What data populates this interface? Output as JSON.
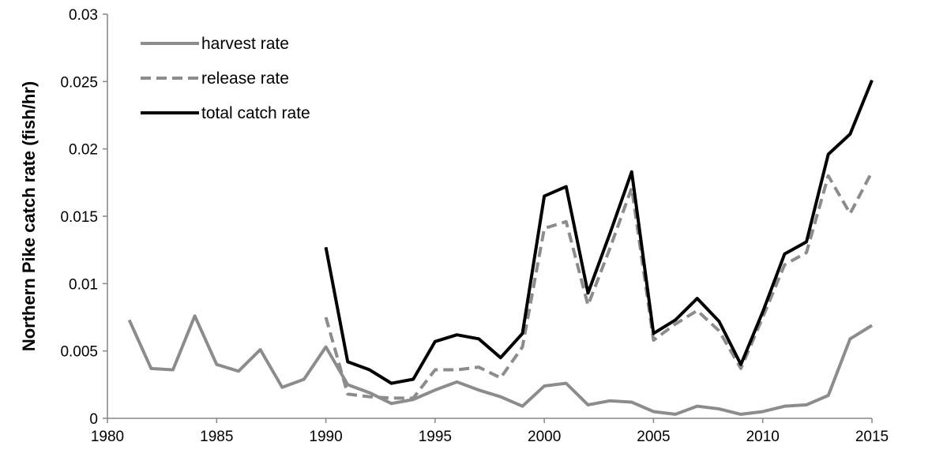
{
  "chart_data": {
    "type": "line",
    "ylabel": "Northern Pike catch rate (fish/hr)",
    "xlabel": "",
    "xlim": [
      1980,
      2015
    ],
    "ylim": [
      0,
      0.03
    ],
    "x_ticks": [
      1980,
      1985,
      1990,
      1995,
      2000,
      2005,
      2010,
      2015
    ],
    "y_ticks": [
      0,
      0.005,
      0.01,
      0.015,
      0.02,
      0.025,
      0.03
    ],
    "x_tick_labels": [
      "1980",
      "1985",
      "1990",
      "1995",
      "2000",
      "2005",
      "2010",
      "2015"
    ],
    "y_tick_labels": [
      "0",
      "0.005",
      "0.01",
      "0.015",
      "0.02",
      "0.025",
      "0.03"
    ],
    "grid": false,
    "legend_position": "top-left",
    "series": [
      {
        "name": "harvest rate",
        "style": "solid",
        "color": "#8c8c8c",
        "x": [
          1981,
          1982,
          1983,
          1984,
          1985,
          1986,
          1987,
          1988,
          1989,
          1990,
          1991,
          1992,
          1993,
          1994,
          1995,
          1996,
          1997,
          1998,
          1999,
          2000,
          2001,
          2002,
          2003,
          2004,
          2005,
          2006,
          2007,
          2008,
          2009,
          2010,
          2011,
          2012,
          2013,
          2014,
          2015
        ],
        "y": [
          0.0073,
          0.0037,
          0.0036,
          0.0076,
          0.004,
          0.0035,
          0.0051,
          0.0023,
          0.0029,
          0.0053,
          0.0025,
          0.0019,
          0.0011,
          0.0014,
          0.0021,
          0.0027,
          0.0021,
          0.0016,
          0.0009,
          0.0024,
          0.0026,
          0.001,
          0.0013,
          0.0012,
          0.0005,
          0.0003,
          0.0009,
          0.0007,
          0.0003,
          0.0005,
          0.0009,
          0.001,
          0.0017,
          0.0059,
          0.0069
        ]
      },
      {
        "name": "release rate",
        "style": "dashed",
        "color": "#8c8c8c",
        "x": [
          1990,
          1991,
          1992,
          1993,
          1994,
          1995,
          1996,
          1997,
          1998,
          1999,
          2000,
          2001,
          2002,
          2003,
          2004,
          2005,
          2006,
          2007,
          2008,
          2009,
          2010,
          2011,
          2012,
          2013,
          2014,
          2015
        ],
        "y": [
          0.0075,
          0.0018,
          0.0016,
          0.0015,
          0.0015,
          0.0036,
          0.0036,
          0.0038,
          0.003,
          0.0053,
          0.0141,
          0.0146,
          0.0084,
          0.0126,
          0.0171,
          0.0058,
          0.007,
          0.008,
          0.0065,
          0.0037,
          0.0075,
          0.0114,
          0.0123,
          0.018,
          0.0152,
          0.0183
        ]
      },
      {
        "name": "total catch rate",
        "style": "solid",
        "color": "#000000",
        "x": [
          1990,
          1991,
          1992,
          1993,
          1994,
          1995,
          1996,
          1997,
          1998,
          1999,
          2000,
          2001,
          2002,
          2003,
          2004,
          2005,
          2006,
          2007,
          2008,
          2009,
          2010,
          2011,
          2012,
          2013,
          2014,
          2015
        ],
        "y": [
          0.0127,
          0.0042,
          0.0036,
          0.0026,
          0.0029,
          0.0057,
          0.0062,
          0.0059,
          0.0045,
          0.0063,
          0.0165,
          0.0172,
          0.0093,
          0.0137,
          0.0183,
          0.0063,
          0.0073,
          0.0089,
          0.0072,
          0.004,
          0.0079,
          0.0122,
          0.0131,
          0.0196,
          0.0211,
          0.0251
        ]
      }
    ]
  }
}
